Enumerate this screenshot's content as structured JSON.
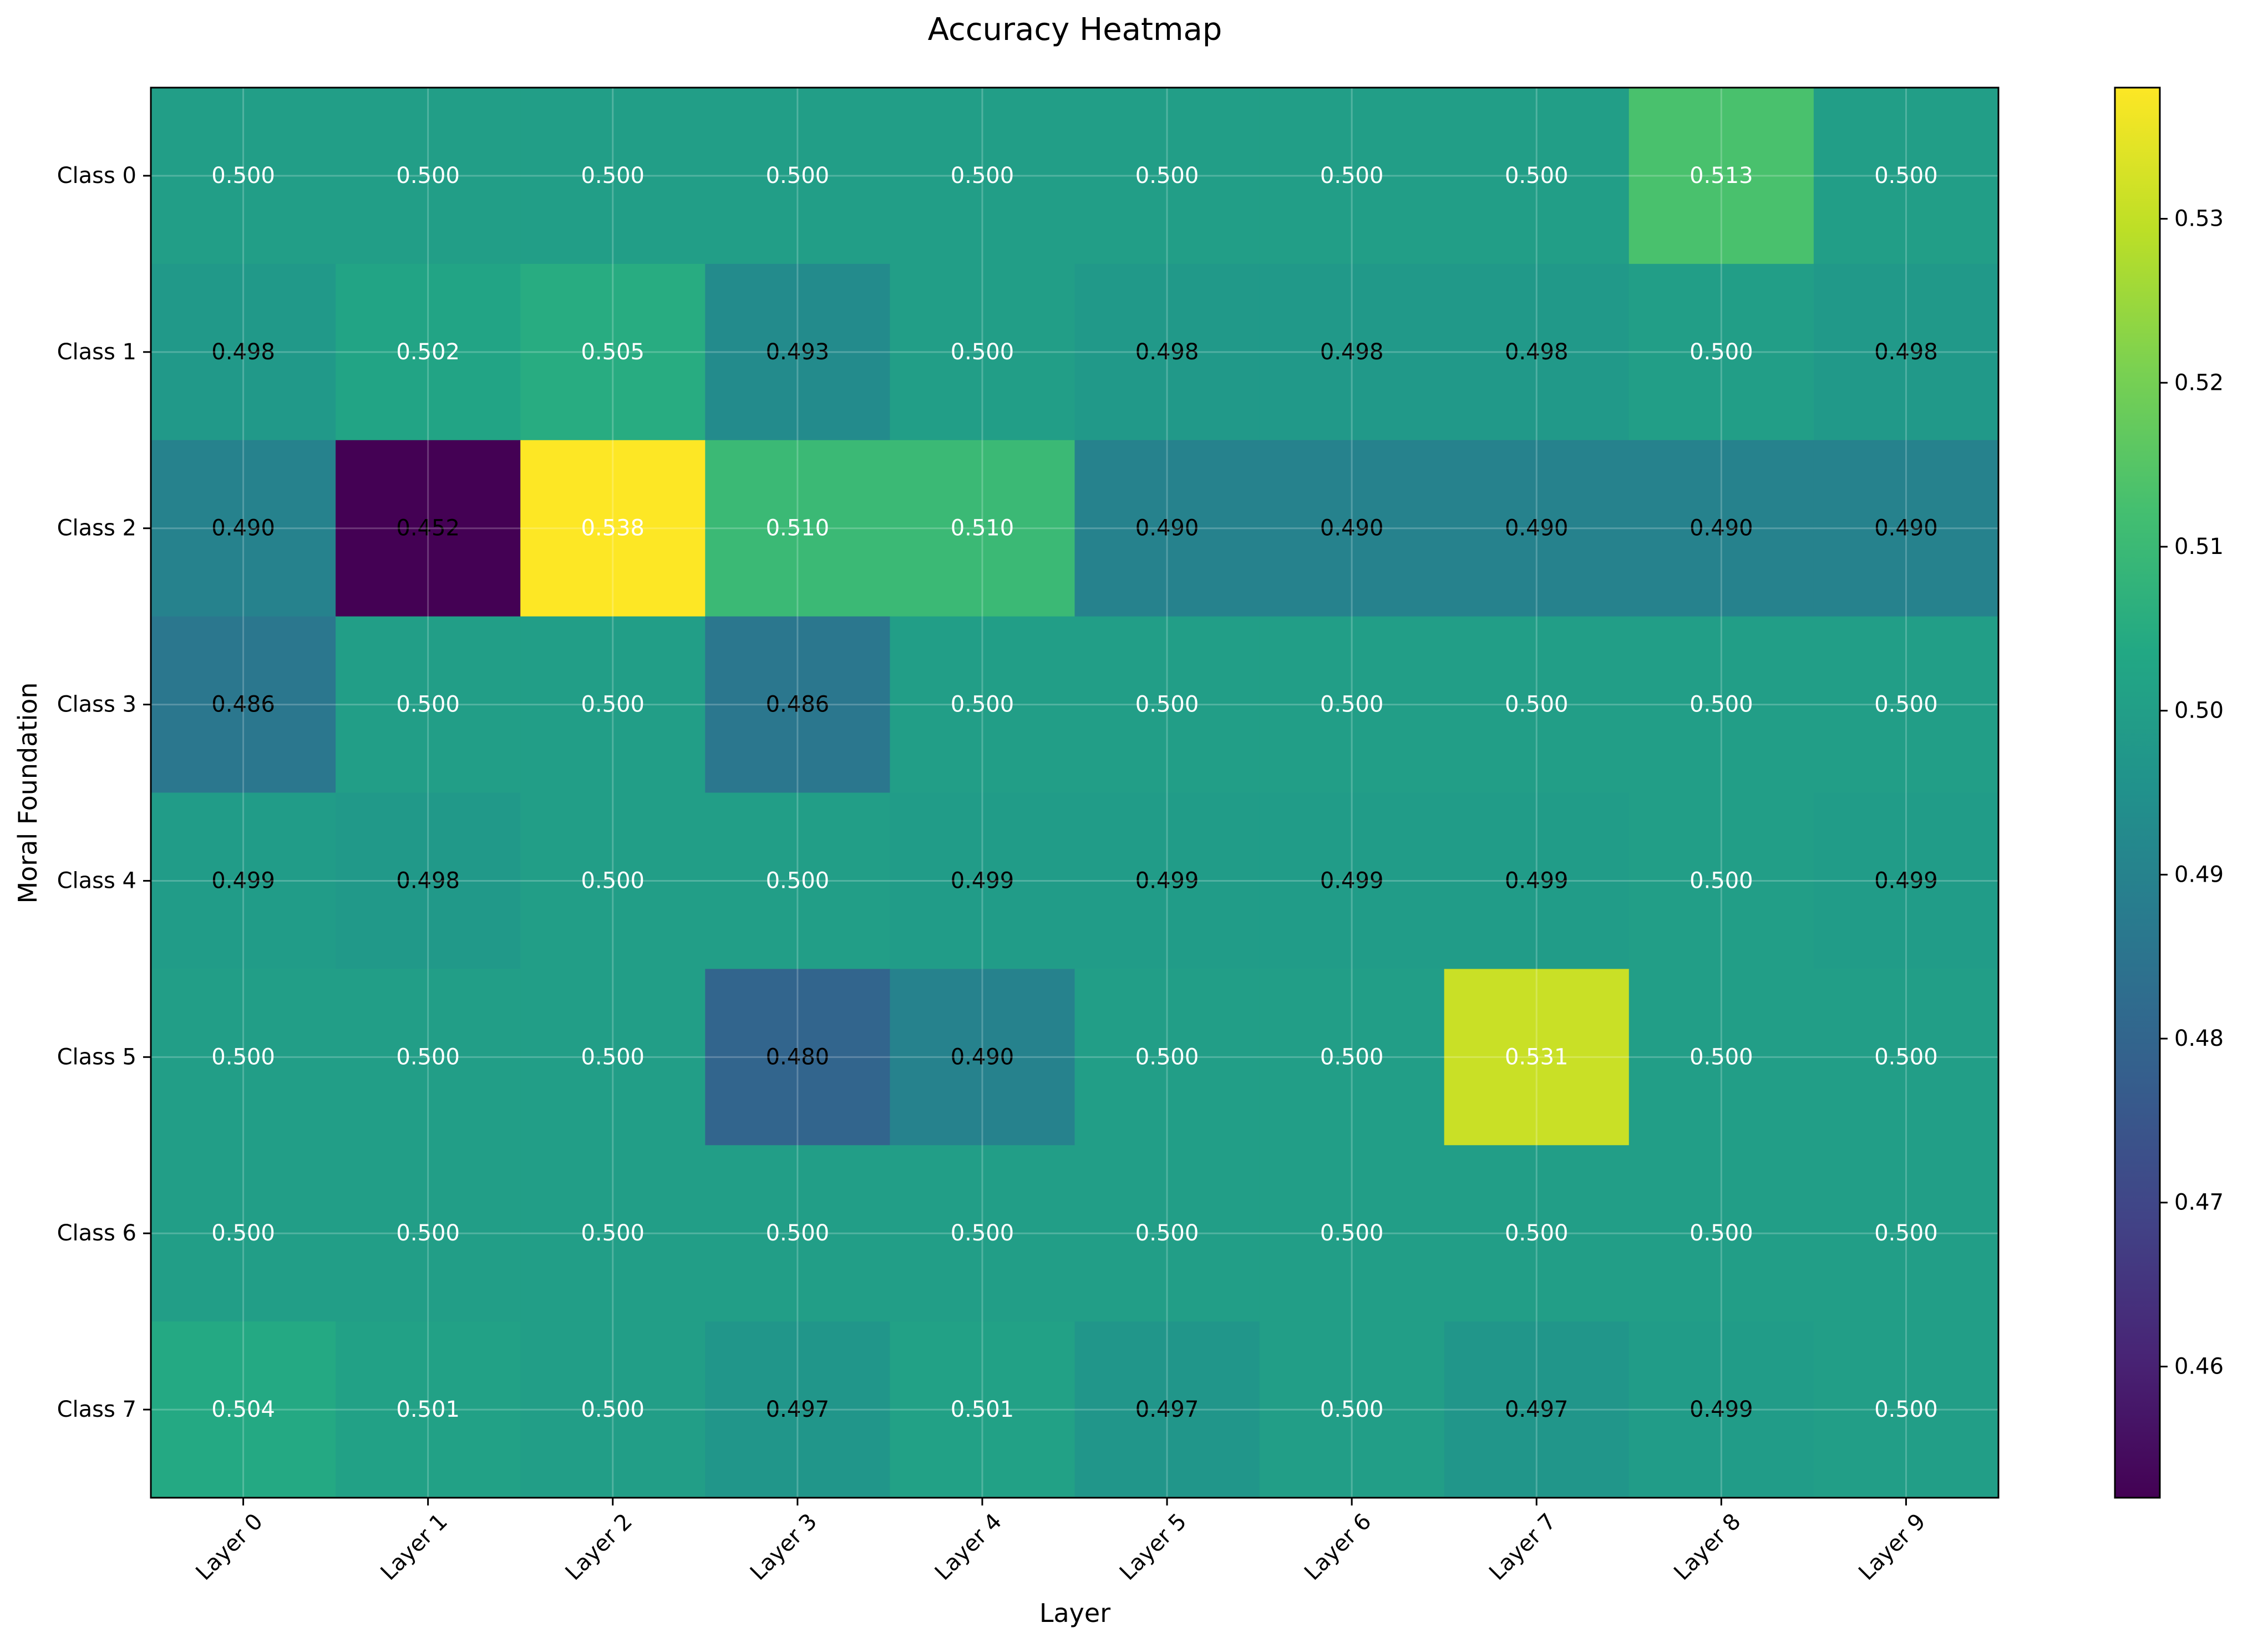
{
  "chart_data": {
    "type": "heatmap",
    "title": "Accuracy Heatmap",
    "xlabel": "Layer",
    "ylabel": "Moral Foundation",
    "x_categories": [
      "Layer 0",
      "Layer 1",
      "Layer 2",
      "Layer 3",
      "Layer 4",
      "Layer 5",
      "Layer 6",
      "Layer 7",
      "Layer 8",
      "Layer 9"
    ],
    "y_categories": [
      "Class 0",
      "Class 1",
      "Class 2",
      "Class 3",
      "Class 4",
      "Class 5",
      "Class 6",
      "Class 7"
    ],
    "values": [
      [
        0.5,
        0.5,
        0.5,
        0.5,
        0.5,
        0.5,
        0.5,
        0.5,
        0.513,
        0.5
      ],
      [
        0.498,
        0.502,
        0.505,
        0.493,
        0.5,
        0.498,
        0.498,
        0.498,
        0.5,
        0.498
      ],
      [
        0.49,
        0.452,
        0.538,
        0.51,
        0.51,
        0.49,
        0.49,
        0.49,
        0.49,
        0.49
      ],
      [
        0.486,
        0.5,
        0.5,
        0.486,
        0.5,
        0.5,
        0.5,
        0.5,
        0.5,
        0.5
      ],
      [
        0.499,
        0.498,
        0.5,
        0.5,
        0.499,
        0.499,
        0.499,
        0.499,
        0.5,
        0.499
      ],
      [
        0.5,
        0.5,
        0.5,
        0.48,
        0.49,
        0.5,
        0.5,
        0.531,
        0.5,
        0.5
      ],
      [
        0.5,
        0.5,
        0.5,
        0.5,
        0.5,
        0.5,
        0.5,
        0.5,
        0.5,
        0.5
      ],
      [
        0.504,
        0.501,
        0.5,
        0.497,
        0.501,
        0.497,
        0.5,
        0.497,
        0.499,
        0.5
      ]
    ],
    "value_format": "0.000",
    "colormap": "viridis",
    "vmin": 0.452,
    "vmax": 0.538,
    "colorbar_ticks": [
      0.46,
      0.47,
      0.48,
      0.49,
      0.5,
      0.51,
      0.52,
      0.53
    ],
    "grid": true,
    "colorbar": true
  }
}
